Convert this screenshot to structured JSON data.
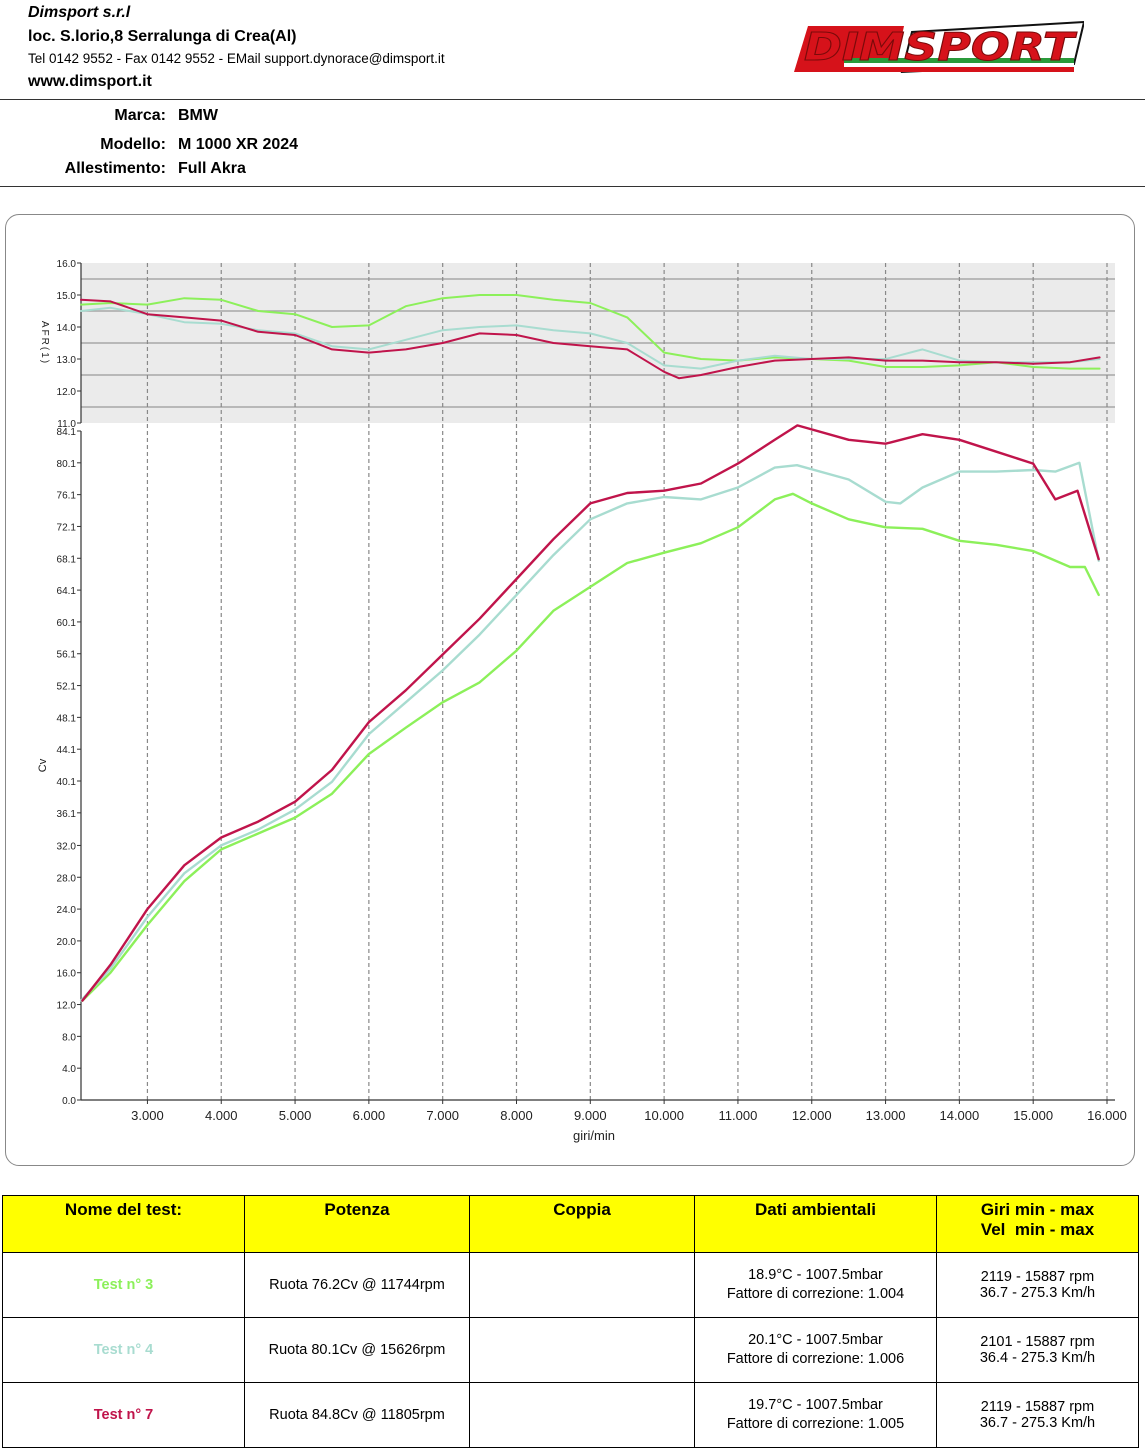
{
  "header": {
    "company": "Dimsport s.r.l",
    "address": "loc. S.lorio,8 Serralunga di Crea(Al)",
    "contacts": "Tel 0142 9552 - Fax 0142 9552 - EMail support.dynorace@dimsport.it",
    "website": "www.dimsport.it",
    "logo_text": "DIMSPORT"
  },
  "vehicle": {
    "marca_label": "Marca:",
    "marca": "BMW",
    "modello_label": "Modello:",
    "modello": "M 1000 XR 2024",
    "allestimento_label": "Allestimento:",
    "allestimento": "Full Akra"
  },
  "chart_data": [
    {
      "type": "line",
      "ylabel": "AFR(1)",
      "xlim": [
        2100,
        16000
      ],
      "ylim": [
        11.0,
        16.0
      ],
      "yticks": [
        "11.0",
        "12.0",
        "13.0",
        "14.0",
        "15.0",
        "16.0"
      ],
      "series": [
        {
          "name": "Test n° 3",
          "color": "#8cf05a",
          "x": [
            2100,
            2500,
            3000,
            3500,
            4000,
            4500,
            5000,
            5500,
            6000,
            6500,
            7000,
            7500,
            8000,
            8500,
            9000,
            9500,
            10000,
            10500,
            11000,
            11500,
            12000,
            12500,
            13000,
            13500,
            14000,
            14500,
            15000,
            15500,
            15900
          ],
          "y": [
            14.7,
            14.75,
            14.7,
            14.9,
            14.85,
            14.5,
            14.4,
            14.0,
            14.05,
            14.65,
            14.9,
            15.0,
            15.0,
            14.85,
            14.75,
            14.3,
            13.2,
            13.0,
            12.95,
            13.05,
            13.0,
            12.95,
            12.75,
            12.75,
            12.8,
            12.9,
            12.75,
            12.7,
            12.7
          ]
        },
        {
          "name": "Test n° 4",
          "color": "#a8dcd0",
          "x": [
            2100,
            2500,
            3000,
            3500,
            4000,
            4500,
            5000,
            5500,
            6000,
            6500,
            7000,
            7500,
            8000,
            8500,
            9000,
            9500,
            10000,
            10500,
            11000,
            11500,
            12000,
            12500,
            13000,
            13500,
            14000,
            14500,
            15000,
            15500,
            15900
          ],
          "y": [
            14.5,
            14.6,
            14.4,
            14.15,
            14.1,
            13.9,
            13.8,
            13.4,
            13.3,
            13.6,
            13.9,
            14.0,
            14.05,
            13.9,
            13.8,
            13.5,
            12.8,
            12.7,
            12.95,
            13.1,
            13.0,
            13.0,
            13.0,
            13.3,
            12.95,
            12.9,
            12.9,
            12.9,
            13.0
          ]
        },
        {
          "name": "Test n° 7",
          "color": "#c0144b",
          "x": [
            2100,
            2500,
            3000,
            3500,
            4000,
            4500,
            5000,
            5500,
            6000,
            6500,
            7000,
            7500,
            8000,
            8500,
            9000,
            9500,
            10000,
            10200,
            10500,
            11000,
            11500,
            12000,
            12500,
            13000,
            13500,
            14000,
            14500,
            15000,
            15500,
            15900
          ],
          "y": [
            14.85,
            14.8,
            14.4,
            14.3,
            14.2,
            13.85,
            13.75,
            13.3,
            13.2,
            13.3,
            13.5,
            13.8,
            13.75,
            13.5,
            13.4,
            13.3,
            12.6,
            12.4,
            12.5,
            12.75,
            12.95,
            13.0,
            13.05,
            12.95,
            12.95,
            12.9,
            12.9,
            12.85,
            12.9,
            13.05
          ]
        }
      ]
    },
    {
      "type": "line",
      "xlabel": "giri/min",
      "ylabel": "Cv",
      "xlim": [
        2100,
        16000
      ],
      "ylim": [
        0,
        84.1
      ],
      "xticks": [
        "3.000",
        "4.000",
        "5.000",
        "6.000",
        "7.000",
        "8.000",
        "9.000",
        "10.000",
        "11.000",
        "12.000",
        "13.000",
        "14.000",
        "15.000",
        "16.000"
      ],
      "yticks": [
        "0.0",
        "4.0",
        "8.0",
        "12.0",
        "16.0",
        "20.0",
        "24.0",
        "28.0",
        "32.0",
        "36.1",
        "40.1",
        "44.1",
        "48.1",
        "52.1",
        "56.1",
        "60.1",
        "64.1",
        "68.1",
        "72.1",
        "76.1",
        "80.1",
        "84.1"
      ],
      "series": [
        {
          "name": "Test n° 3",
          "color": "#8cf05a",
          "x": [
            2119,
            2500,
            3000,
            3500,
            4000,
            4500,
            5000,
            5500,
            6000,
            6500,
            7000,
            7500,
            8000,
            8500,
            9000,
            9500,
            10000,
            10500,
            11000,
            11500,
            11744,
            12000,
            12500,
            13000,
            13500,
            14000,
            14500,
            15000,
            15500,
            15700,
            15887
          ],
          "y": [
            12.5,
            16.0,
            22.0,
            27.5,
            31.5,
            33.5,
            35.5,
            38.5,
            43.5,
            46.8,
            50.0,
            52.5,
            56.5,
            61.5,
            64.5,
            67.5,
            68.8,
            70.0,
            72.0,
            75.5,
            76.2,
            75.0,
            73.0,
            72.0,
            71.8,
            70.3,
            69.8,
            69.0,
            67.0,
            67.0,
            63.5
          ]
        },
        {
          "name": "Test n° 4",
          "color": "#a8dcd0",
          "x": [
            2101,
            2500,
            3000,
            3500,
            4000,
            4500,
            5000,
            5500,
            6000,
            6500,
            7000,
            7500,
            8000,
            8500,
            9000,
            9500,
            10000,
            10500,
            11000,
            11500,
            11800,
            12500,
            13000,
            13200,
            13500,
            14000,
            14500,
            15000,
            15300,
            15626,
            15887
          ],
          "y": [
            12.5,
            16.5,
            23.0,
            28.5,
            32.0,
            34.0,
            36.5,
            40.0,
            46.0,
            50.0,
            54.0,
            58.5,
            63.5,
            68.5,
            73.0,
            75.0,
            75.8,
            75.5,
            77.0,
            79.5,
            79.8,
            78.0,
            75.2,
            75.0,
            77.0,
            79.0,
            79.0,
            79.2,
            79.0,
            80.1,
            67.8
          ]
        },
        {
          "name": "Test n° 7",
          "color": "#c0144b",
          "x": [
            2119,
            2500,
            3000,
            3500,
            4000,
            4500,
            5000,
            5500,
            6000,
            6500,
            7000,
            7500,
            8000,
            8500,
            9000,
            9500,
            10000,
            10500,
            11000,
            11500,
            11805,
            12500,
            13000,
            13500,
            14000,
            14500,
            15000,
            15300,
            15600,
            15887
          ],
          "y": [
            12.5,
            17.0,
            24.0,
            29.5,
            33.0,
            35.0,
            37.5,
            41.5,
            47.5,
            51.5,
            56.0,
            60.5,
            65.5,
            70.5,
            75.0,
            76.3,
            76.6,
            77.5,
            80.0,
            83.0,
            84.8,
            83.0,
            82.5,
            83.7,
            83.0,
            81.5,
            80.0,
            75.5,
            76.6,
            68.0
          ]
        }
      ]
    }
  ],
  "table": {
    "headers": {
      "name": "Nome del test:",
      "potenza": "Potenza",
      "coppia": "Coppia",
      "ambientali": "Dati ambientali",
      "giri_l1": "Giri min - max",
      "giri_l2": "Vel  min - max"
    },
    "rows": [
      {
        "name": "Test n° 3",
        "color": "#8cf05a",
        "potenza": "Ruota 76.2Cv @ 11744rpm",
        "coppia": "",
        "amb1": "18.9°C - 1007.5mbar",
        "amb2": "Fattore di correzione: 1.004",
        "giri": "2119 - 15887 rpm",
        "vel": "36.7 - 275.3 Km/h"
      },
      {
        "name": "Test n° 4",
        "color": "#a8dcd0",
        "potenza": "Ruota 80.1Cv @ 15626rpm",
        "coppia": "",
        "amb1": "20.1°C - 1007.5mbar",
        "amb2": "Fattore di correzione: 1.006",
        "giri": "2101 - 15887 rpm",
        "vel": "36.4 - 275.3 Km/h"
      },
      {
        "name": "Test n° 7",
        "color": "#c0144b",
        "potenza": "Ruota 84.8Cv @ 11805rpm",
        "coppia": "",
        "amb1": "19.7°C - 1007.5mbar",
        "amb2": "Fattore di correzione: 1.005",
        "giri": "2119 - 15887 rpm",
        "vel": "36.7 - 275.3 Km/h"
      }
    ]
  }
}
